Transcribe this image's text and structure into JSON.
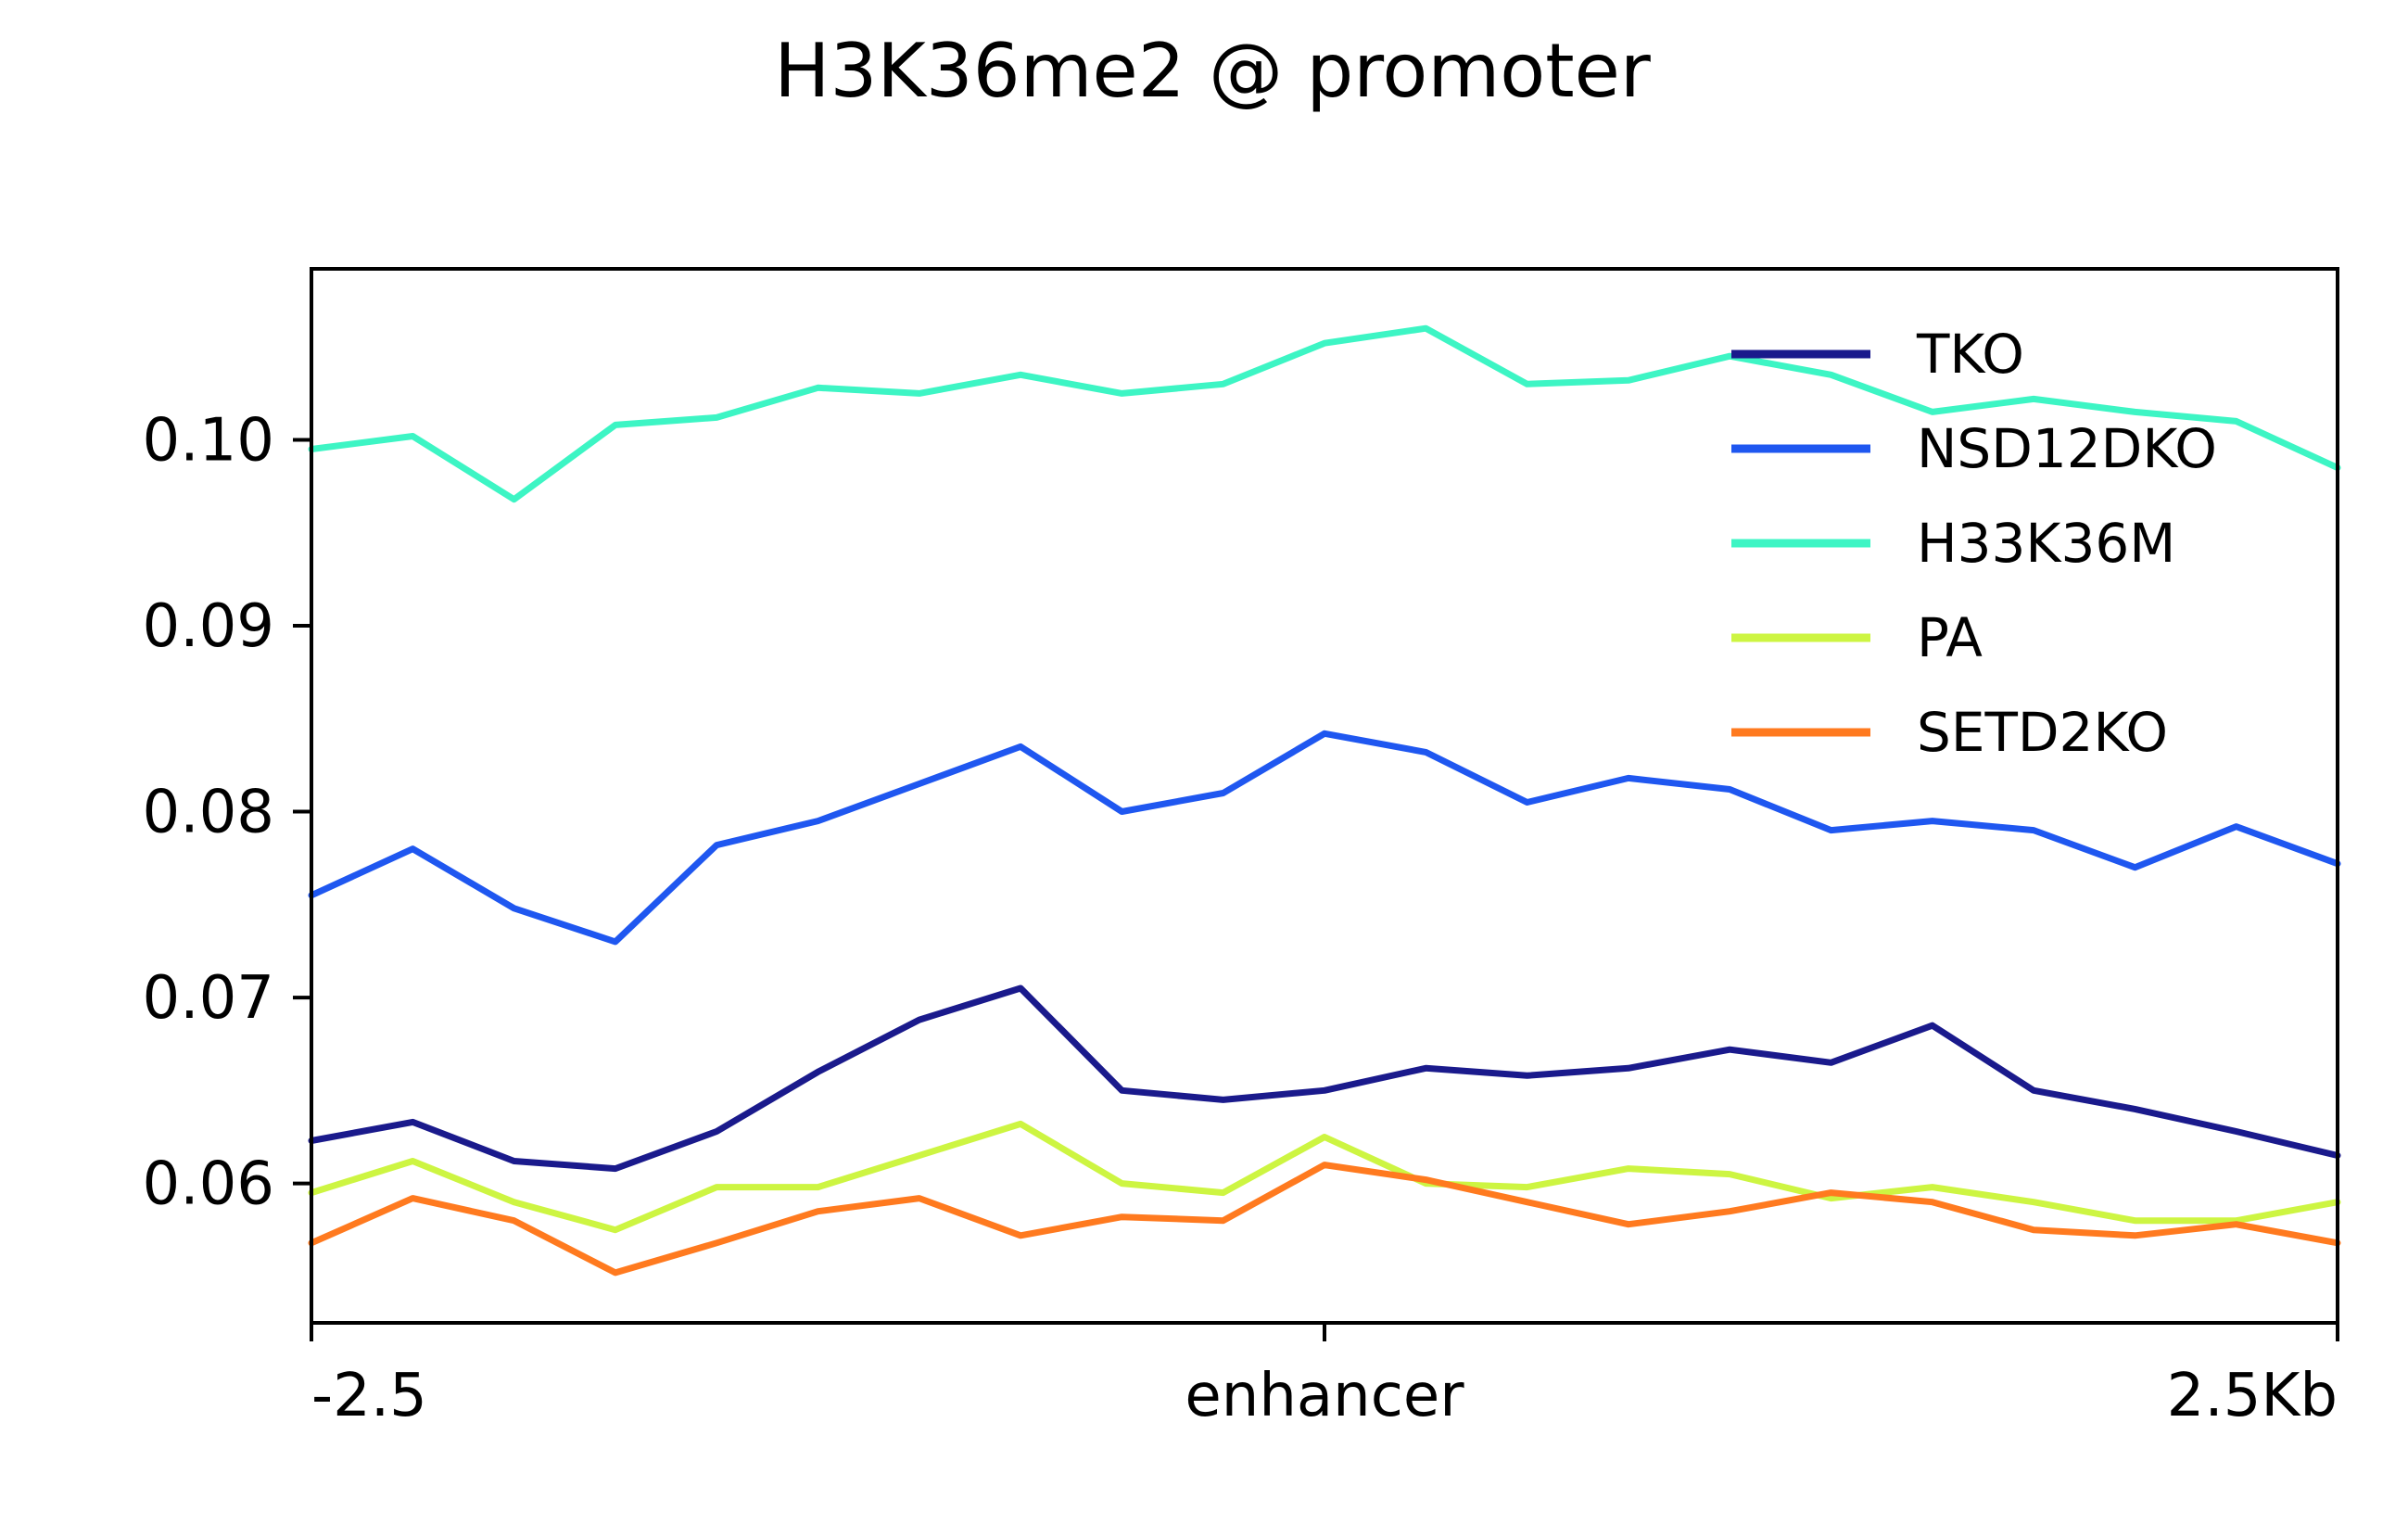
{
  "chart_data": {
    "type": "line",
    "title": "H3K36me2 @ promoter",
    "xlabel": "",
    "ylabel": "",
    "xlim": [
      -2.5,
      2.5
    ],
    "ylim": [
      0.0525,
      0.1092
    ],
    "x_ticks": [
      {
        "value": -2.5,
        "label": "-2.5"
      },
      {
        "value": 0,
        "label": "enhancer"
      },
      {
        "value": 2.5,
        "label": "2.5Kb"
      }
    ],
    "y_ticks": [
      {
        "value": 0.06,
        "label": "0.06"
      },
      {
        "value": 0.07,
        "label": "0.07"
      },
      {
        "value": 0.08,
        "label": "0.08"
      },
      {
        "value": 0.09,
        "label": "0.09"
      },
      {
        "value": 0.1,
        "label": "0.10"
      }
    ],
    "grid": false,
    "legend_position": "top-right",
    "x": [
      -2.5,
      -2.25,
      -2.0,
      -1.75,
      -1.5,
      -1.25,
      -1.0,
      -0.75,
      -0.5,
      -0.25,
      0.0,
      0.25,
      0.5,
      0.75,
      1.0,
      1.25,
      1.5,
      1.75,
      2.0,
      2.25,
      2.5
    ],
    "series": [
      {
        "name": "TKO",
        "color": "#1a1a8c",
        "values": [
          0.0623,
          0.0633,
          0.0612,
          0.0608,
          0.0628,
          0.066,
          0.0688,
          0.0705,
          0.065,
          0.0645,
          0.065,
          0.0662,
          0.0658,
          0.0662,
          0.0672,
          0.0665,
          0.0685,
          0.065,
          0.064,
          0.0628,
          0.0615
        ]
      },
      {
        "name": "NSD12DKO",
        "color": "#1f57f0",
        "values": [
          0.0755,
          0.078,
          0.0748,
          0.073,
          0.0782,
          0.0795,
          0.0815,
          0.0835,
          0.08,
          0.081,
          0.0842,
          0.0832,
          0.0805,
          0.0818,
          0.0812,
          0.079,
          0.0795,
          0.079,
          0.077,
          0.0792,
          0.0772
        ]
      },
      {
        "name": "H33K36M",
        "color": "#3df5c4",
        "values": [
          0.0995,
          0.1002,
          0.0968,
          0.1008,
          0.1012,
          0.1028,
          0.1025,
          0.1035,
          0.1025,
          0.103,
          0.1052,
          0.106,
          0.103,
          0.1032,
          0.1045,
          0.1035,
          0.1015,
          0.1022,
          0.1015,
          0.101,
          0.0985
        ]
      },
      {
        "name": "PA",
        "color": "#cdf542",
        "values": [
          0.0595,
          0.0612,
          0.059,
          0.0575,
          0.0598,
          0.0598,
          0.0615,
          0.0632,
          0.06,
          0.0595,
          0.0625,
          0.06,
          0.0598,
          0.0608,
          0.0605,
          0.0592,
          0.0598,
          0.059,
          0.058,
          0.058,
          0.059
        ]
      },
      {
        "name": "SETD2KO",
        "color": "#ff7a1f",
        "values": [
          0.0568,
          0.0592,
          0.058,
          0.0552,
          0.0568,
          0.0585,
          0.0592,
          0.0572,
          0.0582,
          0.058,
          0.061,
          0.0602,
          0.059,
          0.0578,
          0.0585,
          0.0595,
          0.059,
          0.0575,
          0.0572,
          0.0578,
          0.0568
        ]
      }
    ]
  }
}
